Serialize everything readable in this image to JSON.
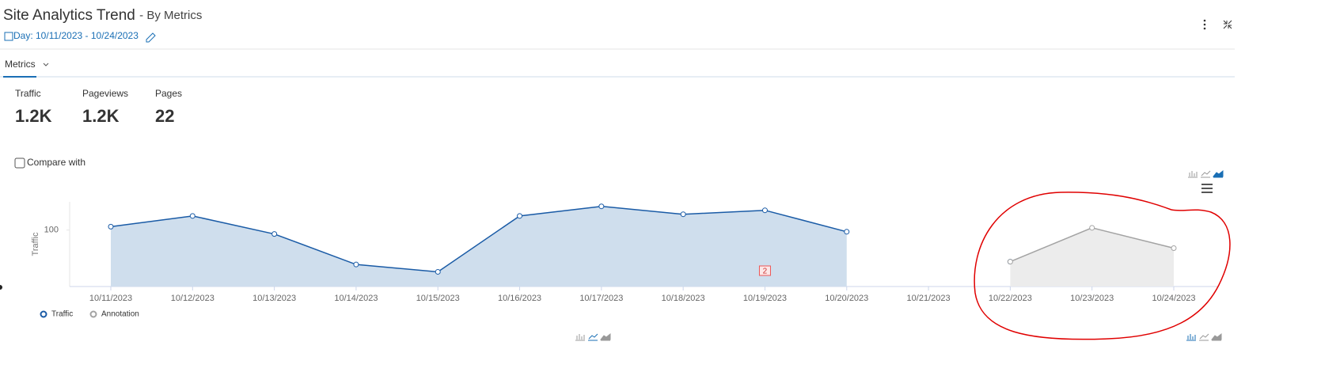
{
  "header": {
    "title": "Site Analytics Trend",
    "subtitle": "- By Metrics",
    "date_range": "Day: 10/11/2023 - 10/24/2023"
  },
  "tabs": [
    "Metrics"
  ],
  "metrics": [
    {
      "label": "Traffic",
      "value": "1.2K"
    },
    {
      "label": "Pageviews",
      "value": "1.2K"
    },
    {
      "label": "Pages",
      "value": "22"
    }
  ],
  "compare_label": "Compare with",
  "chart_data": {
    "type": "area",
    "y_label": "Traffic",
    "categories": [
      "10/11/2023",
      "10/12/2023",
      "10/13/2023",
      "10/14/2023",
      "10/15/2023",
      "10/16/2023",
      "10/17/2023",
      "10/18/2023",
      "10/19/2023",
      "10/20/2023",
      "10/21/2023",
      "10/22/2023",
      "10/23/2023",
      "10/24/2023"
    ],
    "ylim": [
      0,
      150
    ],
    "yticks": [
      100
    ],
    "series": [
      {
        "name": "Traffic",
        "color": "#1a5ba6",
        "fill": "#cfdeed",
        "values": [
          106,
          125,
          93,
          39,
          26,
          125,
          142,
          128,
          135,
          97,
          null,
          44,
          null,
          null
        ]
      },
      {
        "name": "Annotation",
        "color": "#a3a3a3",
        "fill": "#ececec",
        "values": [
          null,
          null,
          null,
          null,
          null,
          null,
          null,
          null,
          null,
          null,
          null,
          44,
          104,
          68
        ]
      }
    ],
    "annotations": [
      {
        "text": "2",
        "category": "10/19/2023"
      }
    ]
  }
}
